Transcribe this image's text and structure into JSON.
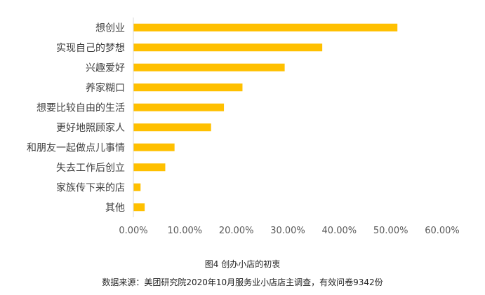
{
  "chart_data": {
    "type": "bar",
    "orientation": "horizontal",
    "categories": [
      "想创业",
      "实现自己的梦想",
      "兴趣爱好",
      "养家糊口",
      "想要比较自由的生活",
      "更好地照顾家人",
      "和朋友一起做点儿事情",
      "失去工作后创立",
      "家族传下来的店",
      "其他"
    ],
    "values": [
      0.513,
      0.367,
      0.294,
      0.212,
      0.176,
      0.151,
      0.08,
      0.062,
      0.014,
      0.022
    ],
    "xlim": [
      0,
      0.6
    ],
    "xticks": [
      0,
      0.1,
      0.2,
      0.3,
      0.4,
      0.5,
      0.6
    ],
    "xtick_labels": [
      "0.00%",
      "10.00%",
      "20.00%",
      "30.00%",
      "40.00%",
      "50.00%",
      "60.00%"
    ],
    "bar_color": "#FFC000",
    "grid": false,
    "title": "图4  创办小店的初衷",
    "source": "数据来源：美团研究院2020年10月服务业小店店主调查，有效问卷9342份"
  }
}
